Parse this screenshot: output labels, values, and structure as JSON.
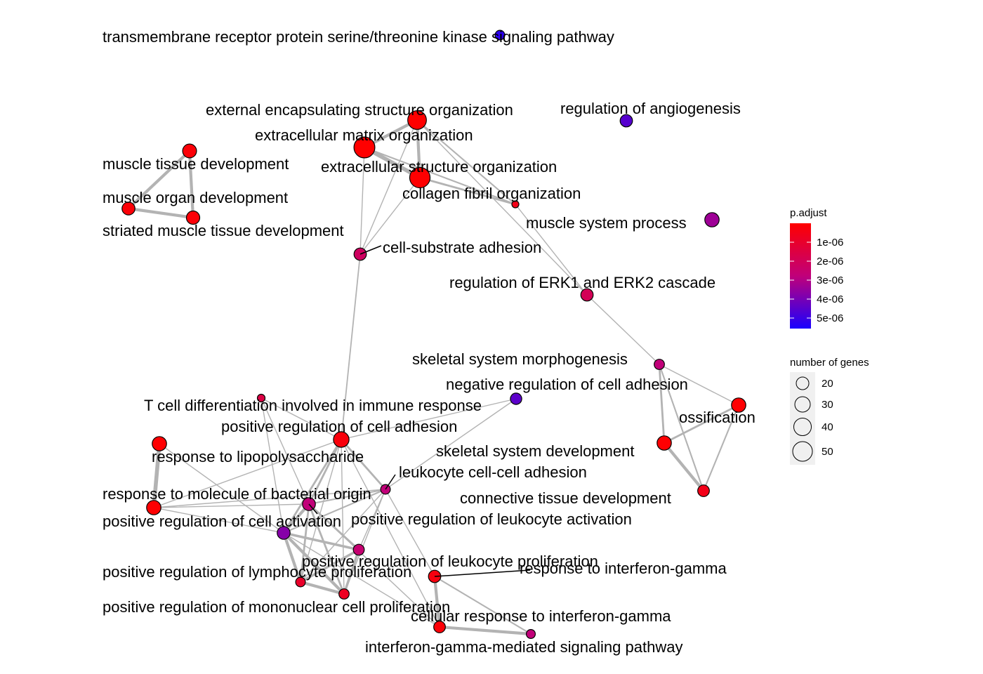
{
  "legend": {
    "color_title": "p.adjust",
    "color_ticks": [
      "1e-06",
      "2e-06",
      "3e-06",
      "4e-06",
      "5e-06"
    ],
    "color_scale": {
      "low": "#ff0000",
      "mid": "#c0007a",
      "high": "#1a00ff"
    },
    "size_title": "number of genes",
    "size_ticks": [
      "20",
      "30",
      "40",
      "50"
    ]
  },
  "chart_data": {
    "type": "network",
    "nodes": [
      {
        "id": "tmr",
        "label": "transmembrane receptor protein serine/threonine kinase signaling pathway",
        "p_adjust": 5.3e-06,
        "genes": 22
      },
      {
        "id": "eeso",
        "label": "external encapsulating structure organization",
        "p_adjust": 5e-08,
        "genes": 45
      },
      {
        "id": "ang",
        "label": "regulation of angiogenesis",
        "p_adjust": 4.6e-06,
        "genes": 30
      },
      {
        "id": "emo",
        "label": "extracellular matrix organization",
        "p_adjust": 5e-08,
        "genes": 52
      },
      {
        "id": "mtd",
        "label": "muscle tissue development",
        "p_adjust": 2e-07,
        "genes": 35
      },
      {
        "id": "eso",
        "label": "extracellular structure organization",
        "p_adjust": 8e-08,
        "genes": 50
      },
      {
        "id": "cfo",
        "label": "collagen fibril organization",
        "p_adjust": 6e-07,
        "genes": 14
      },
      {
        "id": "mod",
        "label": "muscle organ development",
        "p_adjust": 2e-07,
        "genes": 32
      },
      {
        "id": "msp",
        "label": "muscle system process",
        "p_adjust": 3.4e-06,
        "genes": 36
      },
      {
        "id": "smtd",
        "label": "striated muscle tissue development",
        "p_adjust": 2e-07,
        "genes": 33
      },
      {
        "id": "csa",
        "label": "cell-substrate adhesion",
        "p_adjust": 2.2e-06,
        "genes": 30
      },
      {
        "id": "erk",
        "label": "regulation of ERK1 and ERK2 cascade",
        "p_adjust": 2e-06,
        "genes": 30
      },
      {
        "id": "ssm",
        "label": "skeletal system morphogenesis",
        "p_adjust": 2.8e-06,
        "genes": 24
      },
      {
        "id": "nrca",
        "label": "negative regulation of cell adhesion",
        "p_adjust": 4.5e-06,
        "genes": 27
      },
      {
        "id": "tcd",
        "label": "T cell differentiation involved in immune response",
        "p_adjust": 1.6e-06,
        "genes": 16
      },
      {
        "id": "oss",
        "label": "ossification",
        "p_adjust": 1e-07,
        "genes": 36
      },
      {
        "id": "prca",
        "label": "positive regulation of cell adhesion",
        "p_adjust": 3e-07,
        "genes": 40
      },
      {
        "id": "rlps",
        "label": "response to lipopolysaccharide",
        "p_adjust": 1e-07,
        "genes": 36
      },
      {
        "id": "ssd",
        "label": "skeletal system development",
        "p_adjust": 1e-07,
        "genes": 36
      },
      {
        "id": "lcca",
        "label": "leukocyte cell-cell adhesion",
        "p_adjust": 2.8e-06,
        "genes": 22
      },
      {
        "id": "rmbo",
        "label": "response to molecule of bacterial origin",
        "p_adjust": 1e-07,
        "genes": 36
      },
      {
        "id": "ctd",
        "label": "connective tissue development",
        "p_adjust": 6e-07,
        "genes": 28
      },
      {
        "id": "prcact",
        "label": "positive regulation of cell activation",
        "p_adjust": 3.8e-06,
        "genes": 32
      },
      {
        "id": "prla",
        "label": "positive regulation of leukocyte activation",
        "p_adjust": 2.8e-06,
        "genes": 32
      },
      {
        "id": "prlp",
        "label": "positive regulation of leukocyte proliferation",
        "p_adjust": 2.6e-06,
        "genes": 26
      },
      {
        "id": "rig",
        "label": "response to interferon-gamma",
        "p_adjust": 4e-07,
        "genes": 30
      },
      {
        "id": "prlyp",
        "label": "positive regulation of lymphocyte proliferation",
        "p_adjust": 1e-06,
        "genes": 22
      },
      {
        "id": "prmcp",
        "label": "positive regulation of mononuclear cell proliferation",
        "p_adjust": 8e-07,
        "genes": 24
      },
      {
        "id": "crig",
        "label": "cellular response to interferon-gamma",
        "p_adjust": 2e-07,
        "genes": 28
      },
      {
        "id": "igsp",
        "label": "interferon-gamma-mediated signaling pathway",
        "p_adjust": 2.8e-06,
        "genes": 20
      }
    ],
    "edges": [
      [
        "eeso",
        "emo",
        3
      ],
      [
        "eeso",
        "eso",
        3
      ],
      [
        "emo",
        "eso",
        4
      ],
      [
        "eeso",
        "cfo",
        1.5
      ],
      [
        "emo",
        "cfo",
        1.5
      ],
      [
        "eso",
        "cfo",
        2
      ],
      [
        "eeso",
        "csa",
        1
      ],
      [
        "emo",
        "csa",
        1
      ],
      [
        "eso",
        "csa",
        1
      ],
      [
        "eeso",
        "erk",
        1
      ],
      [
        "cfo",
        "erk",
        1
      ],
      [
        "mtd",
        "mod",
        3
      ],
      [
        "mtd",
        "smtd",
        3
      ],
      [
        "mod",
        "smtd",
        3
      ],
      [
        "csa",
        "prca",
        1.3
      ],
      [
        "erk",
        "ssm",
        1
      ],
      [
        "ssm",
        "oss",
        1
      ],
      [
        "ssm",
        "ssd",
        2
      ],
      [
        "ssm",
        "ctd",
        1.5
      ],
      [
        "oss",
        "ssd",
        2
      ],
      [
        "oss",
        "ctd",
        1.5
      ],
      [
        "ssd",
        "ctd",
        3
      ],
      [
        "nrca",
        "prca",
        1
      ],
      [
        "nrca",
        "lcca",
        1
      ],
      [
        "tcd",
        "prca",
        1
      ],
      [
        "tcd",
        "prla",
        1
      ],
      [
        "tcd",
        "prcact",
        1
      ],
      [
        "prca",
        "lcca",
        2
      ],
      [
        "prca",
        "prla",
        2
      ],
      [
        "prca",
        "prcact",
        2
      ],
      [
        "prca",
        "rmbo",
        1
      ],
      [
        "prca",
        "prlyp",
        1
      ],
      [
        "prca",
        "prmcp",
        1
      ],
      [
        "rlps",
        "rmbo",
        4
      ],
      [
        "rlps",
        "prcact",
        1
      ],
      [
        "rmbo",
        "prcact",
        1
      ],
      [
        "rmbo",
        "prla",
        1
      ],
      [
        "rmbo",
        "lcca",
        1
      ],
      [
        "lcca",
        "prla",
        1.5
      ],
      [
        "lcca",
        "prcact",
        1.5
      ],
      [
        "lcca",
        "prlp",
        1
      ],
      [
        "lcca",
        "prlyp",
        1
      ],
      [
        "lcca",
        "prmcp",
        1
      ],
      [
        "lcca",
        "rig",
        1
      ],
      [
        "prla",
        "prcact",
        3
      ],
      [
        "prla",
        "prlp",
        2
      ],
      [
        "prla",
        "prlyp",
        2
      ],
      [
        "prla",
        "prmcp",
        2
      ],
      [
        "prcact",
        "prlp",
        2.5
      ],
      [
        "prcact",
        "prlyp",
        3
      ],
      [
        "prcact",
        "prmcp",
        3
      ],
      [
        "prlp",
        "prlyp",
        2.5
      ],
      [
        "prlp",
        "prmcp",
        2.5
      ],
      [
        "prlyp",
        "prmcp",
        3
      ],
      [
        "rig",
        "crig",
        3
      ],
      [
        "rig",
        "igsp",
        1.5
      ],
      [
        "crig",
        "igsp",
        3
      ],
      [
        "prcact",
        "crig",
        1
      ],
      [
        "prla",
        "crig",
        1
      ],
      [
        "prca",
        "crig",
        1
      ]
    ]
  }
}
